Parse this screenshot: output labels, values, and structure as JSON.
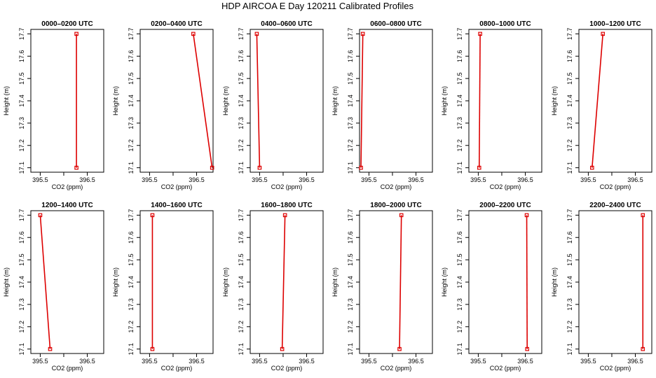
{
  "title": "HDP AIRCOA E  Day 120211  Calibrated Profiles",
  "colors": {
    "line": "#dd0000",
    "axis": "#000000",
    "background": "#ffffff"
  },
  "chart_data": [
    {
      "type": "line",
      "title": "0000–0200 UTC",
      "xlabel": "CO2 (ppm)",
      "ylabel": "Height (m)",
      "xlim": [
        395.3,
        396.85
      ],
      "ylim": [
        17.08,
        17.72
      ],
      "x_ticks": [
        395.5,
        396.0,
        396.5
      ],
      "x_tick_labels": [
        "395.5",
        "",
        "396.5"
      ],
      "y_ticks": [
        17.1,
        17.2,
        17.3,
        17.4,
        17.5,
        17.6,
        17.7
      ],
      "y_tick_labels": [
        "17.1",
        "17.2",
        "17.3",
        "17.4",
        "17.5",
        "17.6",
        "17.7"
      ],
      "points": [
        {
          "x": 396.27,
          "y": 17.1
        },
        {
          "x": 396.27,
          "y": 17.7
        }
      ]
    },
    {
      "type": "line",
      "title": "0200–0400 UTC",
      "xlabel": "CO2 (ppm)",
      "ylabel": "Height (m)",
      "xlim": [
        395.3,
        396.85
      ],
      "ylim": [
        17.08,
        17.72
      ],
      "x_ticks": [
        395.5,
        396.0,
        396.5
      ],
      "x_tick_labels": [
        "395.5",
        "",
        "396.5"
      ],
      "y_ticks": [
        17.1,
        17.2,
        17.3,
        17.4,
        17.5,
        17.6,
        17.7
      ],
      "y_tick_labels": [
        "17.1",
        "17.2",
        "17.3",
        "17.4",
        "17.5",
        "17.6",
        "17.7"
      ],
      "points": [
        {
          "x": 396.83,
          "y": 17.1
        },
        {
          "x": 396.43,
          "y": 17.7
        }
      ]
    },
    {
      "type": "line",
      "title": "0400–0600 UTC",
      "xlabel": "CO2 (ppm)",
      "ylabel": "Height (m)",
      "xlim": [
        395.3,
        396.85
      ],
      "ylim": [
        17.08,
        17.72
      ],
      "x_ticks": [
        395.5,
        396.0,
        396.5
      ],
      "x_tick_labels": [
        "395.5",
        "",
        "396.5"
      ],
      "y_ticks": [
        17.1,
        17.2,
        17.3,
        17.4,
        17.5,
        17.6,
        17.7
      ],
      "y_tick_labels": [
        "17.1",
        "17.2",
        "17.3",
        "17.4",
        "17.5",
        "17.6",
        "17.7"
      ],
      "points": [
        {
          "x": 395.5,
          "y": 17.1
        },
        {
          "x": 395.44,
          "y": 17.7
        }
      ]
    },
    {
      "type": "line",
      "title": "0600–0800 UTC",
      "xlabel": "CO2 (ppm)",
      "ylabel": "Height (m)",
      "xlim": [
        395.3,
        396.85
      ],
      "ylim": [
        17.08,
        17.72
      ],
      "x_ticks": [
        395.5,
        396.0,
        396.5
      ],
      "x_tick_labels": [
        "395.5",
        "",
        "396.5"
      ],
      "y_ticks": [
        17.1,
        17.2,
        17.3,
        17.4,
        17.5,
        17.6,
        17.7
      ],
      "y_tick_labels": [
        "17.1",
        "17.2",
        "17.3",
        "17.4",
        "17.5",
        "17.6",
        "17.7"
      ],
      "points": [
        {
          "x": 395.33,
          "y": 17.1
        },
        {
          "x": 395.37,
          "y": 17.7
        }
      ]
    },
    {
      "type": "line",
      "title": "0800–1000 UTC",
      "xlabel": "CO2 (ppm)",
      "ylabel": "Height (m)",
      "xlim": [
        395.3,
        396.85
      ],
      "ylim": [
        17.08,
        17.72
      ],
      "x_ticks": [
        395.5,
        396.0,
        396.5
      ],
      "x_tick_labels": [
        "395.5",
        "",
        "396.5"
      ],
      "y_ticks": [
        17.1,
        17.2,
        17.3,
        17.4,
        17.5,
        17.6,
        17.7
      ],
      "y_tick_labels": [
        "17.1",
        "17.2",
        "17.3",
        "17.4",
        "17.5",
        "17.6",
        "17.7"
      ],
      "points": [
        {
          "x": 395.52,
          "y": 17.1
        },
        {
          "x": 395.54,
          "y": 17.7
        }
      ]
    },
    {
      "type": "line",
      "title": "1000–1200 UTC",
      "xlabel": "CO2 (ppm)",
      "ylabel": "Height (m)",
      "xlim": [
        395.3,
        396.85
      ],
      "ylim": [
        17.08,
        17.72
      ],
      "x_ticks": [
        395.5,
        396.0,
        396.5
      ],
      "x_tick_labels": [
        "395.5",
        "",
        "396.5"
      ],
      "y_ticks": [
        17.1,
        17.2,
        17.3,
        17.4,
        17.5,
        17.6,
        17.7
      ],
      "y_tick_labels": [
        "17.1",
        "17.2",
        "17.3",
        "17.4",
        "17.5",
        "17.6",
        "17.7"
      ],
      "points": [
        {
          "x": 395.58,
          "y": 17.1
        },
        {
          "x": 395.81,
          "y": 17.7
        }
      ]
    },
    {
      "type": "line",
      "title": "1200–1400 UTC",
      "xlabel": "CO2 (ppm)",
      "ylabel": "Height (m)",
      "xlim": [
        395.3,
        396.85
      ],
      "ylim": [
        17.08,
        17.72
      ],
      "x_ticks": [
        395.5,
        396.0,
        396.5
      ],
      "x_tick_labels": [
        "395.5",
        "",
        "396.5"
      ],
      "y_ticks": [
        17.1,
        17.2,
        17.3,
        17.4,
        17.5,
        17.6,
        17.7
      ],
      "y_tick_labels": [
        "17.1",
        "17.2",
        "17.3",
        "17.4",
        "17.5",
        "17.6",
        "17.7"
      ],
      "points": [
        {
          "x": 395.71,
          "y": 17.1
        },
        {
          "x": 395.5,
          "y": 17.7
        }
      ]
    },
    {
      "type": "line",
      "title": "1400–1600 UTC",
      "xlabel": "CO2 (ppm)",
      "ylabel": "Height (m)",
      "xlim": [
        395.3,
        396.85
      ],
      "ylim": [
        17.08,
        17.72
      ],
      "x_ticks": [
        395.5,
        396.0,
        396.5
      ],
      "x_tick_labels": [
        "395.5",
        "",
        "396.5"
      ],
      "y_ticks": [
        17.1,
        17.2,
        17.3,
        17.4,
        17.5,
        17.6,
        17.7
      ],
      "y_tick_labels": [
        "17.1",
        "17.2",
        "17.3",
        "17.4",
        "17.5",
        "17.6",
        "17.7"
      ],
      "points": [
        {
          "x": 395.56,
          "y": 17.1
        },
        {
          "x": 395.56,
          "y": 17.7
        }
      ]
    },
    {
      "type": "line",
      "title": "1600–1800 UTC",
      "xlabel": "CO2 (ppm)",
      "ylabel": "Height (m)",
      "xlim": [
        395.3,
        396.85
      ],
      "ylim": [
        17.08,
        17.72
      ],
      "x_ticks": [
        395.5,
        396.0,
        396.5
      ],
      "x_tick_labels": [
        "395.5",
        "",
        "396.5"
      ],
      "y_ticks": [
        17.1,
        17.2,
        17.3,
        17.4,
        17.5,
        17.6,
        17.7
      ],
      "y_tick_labels": [
        "17.1",
        "17.2",
        "17.3",
        "17.4",
        "17.5",
        "17.6",
        "17.7"
      ],
      "points": [
        {
          "x": 395.98,
          "y": 17.1
        },
        {
          "x": 396.04,
          "y": 17.7
        }
      ]
    },
    {
      "type": "line",
      "title": "1800–2000 UTC",
      "xlabel": "CO2 (ppm)",
      "ylabel": "Height (m)",
      "xlim": [
        395.3,
        396.85
      ],
      "ylim": [
        17.08,
        17.72
      ],
      "x_ticks": [
        395.5,
        396.0,
        396.5
      ],
      "x_tick_labels": [
        "395.5",
        "",
        "396.5"
      ],
      "y_ticks": [
        17.1,
        17.2,
        17.3,
        17.4,
        17.5,
        17.6,
        17.7
      ],
      "y_tick_labels": [
        "17.1",
        "17.2",
        "17.3",
        "17.4",
        "17.5",
        "17.6",
        "17.7"
      ],
      "points": [
        {
          "x": 396.15,
          "y": 17.1
        },
        {
          "x": 396.19,
          "y": 17.7
        }
      ]
    },
    {
      "type": "line",
      "title": "2000–2200 UTC",
      "xlabel": "CO2 (ppm)",
      "ylabel": "Height (m)",
      "xlim": [
        395.3,
        396.85
      ],
      "ylim": [
        17.08,
        17.72
      ],
      "x_ticks": [
        395.5,
        396.0,
        396.5
      ],
      "x_tick_labels": [
        "395.5",
        "",
        "396.5"
      ],
      "y_ticks": [
        17.1,
        17.2,
        17.3,
        17.4,
        17.5,
        17.6,
        17.7
      ],
      "y_tick_labels": [
        "17.1",
        "17.2",
        "17.3",
        "17.4",
        "17.5",
        "17.6",
        "17.7"
      ],
      "points": [
        {
          "x": 396.54,
          "y": 17.1
        },
        {
          "x": 396.53,
          "y": 17.7
        }
      ]
    },
    {
      "type": "line",
      "title": "2200–2400 UTC",
      "xlabel": "CO2 (ppm)",
      "ylabel": "Height (m)",
      "xlim": [
        395.3,
        396.85
      ],
      "ylim": [
        17.08,
        17.72
      ],
      "x_ticks": [
        395.5,
        396.0,
        396.5
      ],
      "x_tick_labels": [
        "395.5",
        "",
        "396.5"
      ],
      "y_ticks": [
        17.1,
        17.2,
        17.3,
        17.4,
        17.5,
        17.6,
        17.7
      ],
      "y_tick_labels": [
        "17.1",
        "17.2",
        "17.3",
        "17.4",
        "17.5",
        "17.6",
        "17.7"
      ],
      "points": [
        {
          "x": 396.66,
          "y": 17.1
        },
        {
          "x": 396.66,
          "y": 17.7
        }
      ]
    }
  ]
}
